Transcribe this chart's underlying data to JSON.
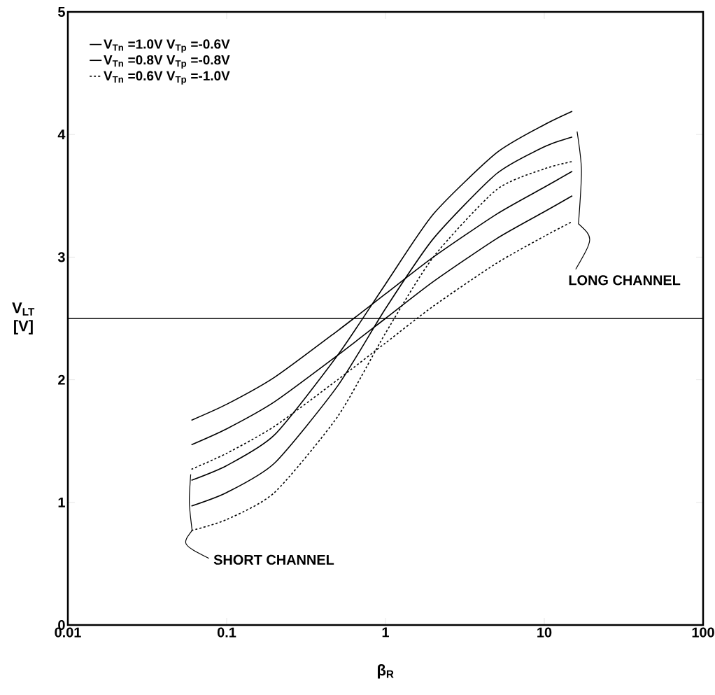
{
  "chart_data": {
    "type": "line",
    "xlabel": "β$_{R}$",
    "ylabel": "V$_{LT}$ [V]",
    "log": "x",
    "xlim": [
      0.01,
      100
    ],
    "ylim": [
      0,
      5
    ],
    "xticks": [
      0.01,
      0.1,
      1,
      10,
      100
    ],
    "yticks": [
      0,
      1,
      2,
      3,
      4,
      5
    ],
    "grid": false,
    "legend": "top left",
    "x": [
      0.06,
      0.1,
      0.2,
      0.5,
      1,
      2,
      5,
      10,
      15
    ],
    "series": [
      {
        "name": "V$_{Tn}$ =1.0V   V$_{Tp}$ =-0.6V",
        "color": "#000000",
        "line_style": "solid",
        "values": [
          1.18,
          1.3,
          1.55,
          2.2,
          2.78,
          3.35,
          3.85,
          4.08,
          4.19
        ]
      },
      {
        "name": "V$_{Tn}$ =0.8V   V$_{Tp}$ =-0.8V",
        "color": "#000000",
        "line_style": "solid",
        "values": [
          0.97,
          1.08,
          1.32,
          1.95,
          2.58,
          3.15,
          3.68,
          3.9,
          3.98
        ]
      },
      {
        "name": "V$_{Tn}$ =0.6V   V$_{Tp}$ =-1.0V",
        "color": "#000000",
        "line_style": "dashed",
        "values": [
          0.77,
          0.86,
          1.08,
          1.7,
          2.38,
          3.0,
          3.55,
          3.72,
          3.78
        ]
      },
      {
        "color": "#000000",
        "line_style": "solid",
        "values": [
          1.67,
          1.8,
          2.02,
          2.4,
          2.7,
          3.0,
          3.35,
          3.57,
          3.7
        ]
      },
      {
        "color": "#000000",
        "line_style": "solid",
        "values": [
          1.47,
          1.6,
          1.82,
          2.2,
          2.5,
          2.8,
          3.15,
          3.37,
          3.5
        ]
      },
      {
        "color": "#000000",
        "line_style": "dashed",
        "values": [
          1.27,
          1.4,
          1.62,
          2.0,
          2.3,
          2.6,
          2.95,
          3.17,
          3.29
        ]
      }
    ],
    "ref_lines": [
      {
        "axis": "y",
        "value": 2.5,
        "color": "#000000"
      }
    ],
    "annotations": [
      "LONG CHANNEL",
      "SHORT CHANNEL"
    ]
  }
}
